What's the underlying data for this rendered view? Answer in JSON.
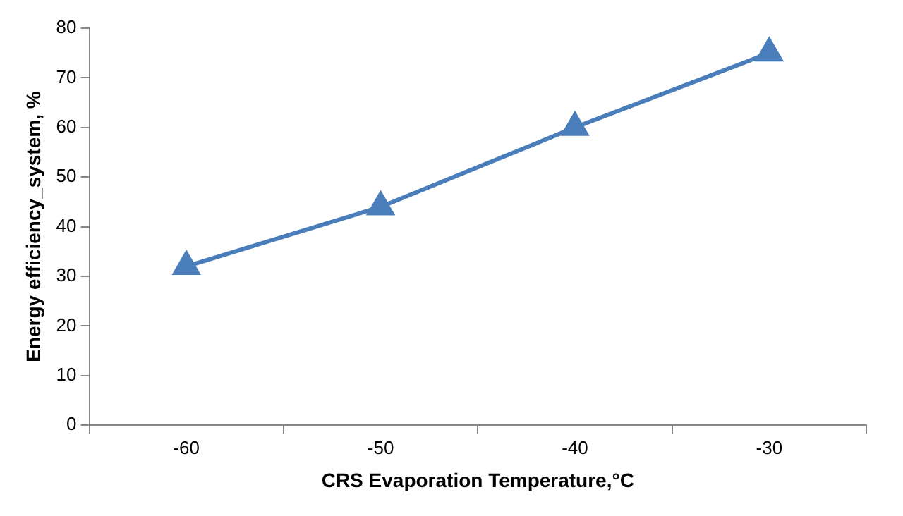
{
  "chart_data": {
    "type": "line",
    "xlabel": "CRS Evaporation Temperature,°C",
    "ylabel": "Energy efficiency_system, %",
    "categories": [
      "-60",
      "-50",
      "-40",
      "-30"
    ],
    "series": [
      {
        "color": "#4a7ebb",
        "values": [
          32,
          44,
          60,
          75
        ]
      }
    ],
    "ylim": [
      0,
      80
    ],
    "yticks": [
      0,
      10,
      20,
      30,
      40,
      50,
      60,
      70,
      80
    ],
    "grid": false,
    "legend": false,
    "marker": "triangle",
    "line_style": "solid"
  }
}
